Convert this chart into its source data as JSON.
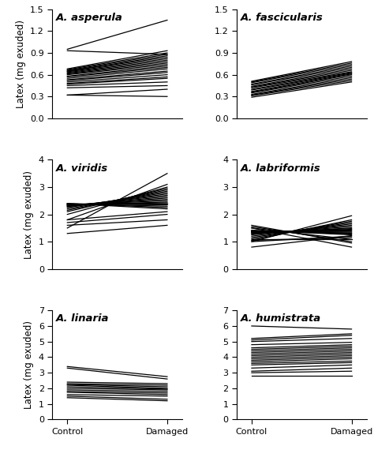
{
  "panels": [
    {
      "title": "A. asperula",
      "ylim": [
        0,
        1.5
      ],
      "yticks": [
        0,
        0.3,
        0.6,
        0.9,
        1.2,
        1.5
      ],
      "lines": [
        [
          0.95,
          1.35
        ],
        [
          0.93,
          0.88
        ],
        [
          0.68,
          0.93
        ],
        [
          0.67,
          0.9
        ],
        [
          0.66,
          0.88
        ],
        [
          0.65,
          0.86
        ],
        [
          0.65,
          0.84
        ],
        [
          0.64,
          0.82
        ],
        [
          0.63,
          0.8
        ],
        [
          0.62,
          0.78
        ],
        [
          0.61,
          0.76
        ],
        [
          0.6,
          0.74
        ],
        [
          0.58,
          0.72
        ],
        [
          0.57,
          0.7
        ],
        [
          0.55,
          0.68
        ],
        [
          0.53,
          0.65
        ],
        [
          0.52,
          0.63
        ],
        [
          0.5,
          0.6
        ],
        [
          0.48,
          0.57
        ],
        [
          0.47,
          0.55
        ],
        [
          0.45,
          0.5
        ],
        [
          0.42,
          0.45
        ],
        [
          0.32,
          0.4
        ],
        [
          0.32,
          0.3
        ]
      ]
    },
    {
      "title": "A. fascicularis",
      "ylim": [
        0,
        1.5
      ],
      "yticks": [
        0,
        0.3,
        0.6,
        0.9,
        1.2,
        1.5
      ],
      "lines": [
        [
          0.51,
          0.78
        ],
        [
          0.5,
          0.76
        ],
        [
          0.49,
          0.74
        ],
        [
          0.47,
          0.72
        ],
        [
          0.46,
          0.7
        ],
        [
          0.44,
          0.68
        ],
        [
          0.43,
          0.66
        ],
        [
          0.42,
          0.64
        ],
        [
          0.4,
          0.63
        ],
        [
          0.39,
          0.62
        ],
        [
          0.37,
          0.61
        ],
        [
          0.36,
          0.6
        ],
        [
          0.35,
          0.58
        ],
        [
          0.33,
          0.56
        ],
        [
          0.32,
          0.54
        ],
        [
          0.31,
          0.52
        ],
        [
          0.29,
          0.5
        ]
      ]
    },
    {
      "title": "A. viridis",
      "ylim": [
        0,
        4
      ],
      "yticks": [
        0,
        1,
        2,
        3,
        4
      ],
      "lines": [
        [
          1.5,
          3.5
        ],
        [
          1.8,
          3.1
        ],
        [
          2.0,
          3.0
        ],
        [
          2.1,
          2.95
        ],
        [
          2.15,
          2.9
        ],
        [
          2.2,
          2.85
        ],
        [
          2.25,
          2.8
        ],
        [
          2.27,
          2.75
        ],
        [
          2.3,
          2.7
        ],
        [
          2.3,
          2.65
        ],
        [
          2.32,
          2.6
        ],
        [
          2.33,
          2.55
        ],
        [
          2.35,
          2.5
        ],
        [
          2.35,
          2.45
        ],
        [
          2.37,
          2.42
        ],
        [
          2.38,
          2.38
        ],
        [
          2.38,
          2.35
        ],
        [
          2.38,
          2.3
        ],
        [
          2.4,
          2.25
        ],
        [
          2.4,
          2.2
        ],
        [
          1.8,
          2.1
        ],
        [
          1.7,
          2.0
        ],
        [
          1.6,
          1.8
        ],
        [
          1.3,
          1.6
        ]
      ]
    },
    {
      "title": "A. labriformis",
      "ylim": [
        0,
        4
      ],
      "yticks": [
        0,
        1,
        2,
        3,
        4
      ],
      "lines": [
        [
          1.0,
          1.95
        ],
        [
          1.05,
          1.8
        ],
        [
          1.1,
          1.75
        ],
        [
          1.15,
          1.7
        ],
        [
          1.2,
          1.65
        ],
        [
          1.25,
          1.6
        ],
        [
          1.28,
          1.55
        ],
        [
          1.3,
          1.5
        ],
        [
          1.32,
          1.48
        ],
        [
          1.33,
          1.45
        ],
        [
          1.35,
          1.43
        ],
        [
          1.35,
          1.4
        ],
        [
          1.37,
          1.38
        ],
        [
          1.38,
          1.35
        ],
        [
          1.38,
          1.32
        ],
        [
          1.4,
          1.3
        ],
        [
          1.4,
          1.28
        ],
        [
          1.42,
          1.25
        ],
        [
          0.8,
          1.22
        ],
        [
          1.0,
          1.2
        ],
        [
          1.05,
          1.15
        ],
        [
          1.1,
          1.1
        ],
        [
          1.5,
          1.08
        ],
        [
          1.55,
          1.0
        ],
        [
          1.6,
          0.95
        ],
        [
          1.5,
          0.8
        ]
      ]
    },
    {
      "title": "A. linaria",
      "ylim": [
        0,
        7
      ],
      "yticks": [
        0,
        1,
        2,
        3,
        4,
        5,
        6,
        7
      ],
      "lines": [
        [
          3.4,
          2.75
        ],
        [
          3.3,
          2.6
        ],
        [
          2.4,
          2.3
        ],
        [
          2.3,
          2.2
        ],
        [
          2.25,
          2.1
        ],
        [
          2.2,
          2.0
        ],
        [
          2.1,
          1.95
        ],
        [
          2.0,
          1.9
        ],
        [
          1.9,
          1.8
        ],
        [
          1.8,
          1.7
        ],
        [
          1.75,
          1.6
        ],
        [
          1.6,
          1.5
        ],
        [
          1.5,
          1.3
        ],
        [
          1.4,
          1.2
        ]
      ]
    },
    {
      "title": "A. humistrata",
      "ylim": [
        0,
        7
      ],
      "yticks": [
        0,
        1,
        2,
        3,
        4,
        5,
        6,
        7
      ],
      "lines": [
        [
          6.0,
          5.8
        ],
        [
          5.2,
          5.5
        ],
        [
          5.1,
          5.4
        ],
        [
          5.0,
          5.2
        ],
        [
          4.8,
          4.95
        ],
        [
          4.6,
          4.8
        ],
        [
          4.5,
          4.7
        ],
        [
          4.4,
          4.6
        ],
        [
          4.3,
          4.5
        ],
        [
          4.2,
          4.4
        ],
        [
          4.1,
          4.3
        ],
        [
          4.0,
          4.2
        ],
        [
          3.9,
          4.1
        ],
        [
          3.8,
          4.0
        ],
        [
          3.7,
          3.9
        ],
        [
          3.6,
          3.75
        ],
        [
          3.5,
          3.65
        ],
        [
          3.3,
          3.5
        ],
        [
          3.1,
          3.3
        ],
        [
          3.0,
          3.1
        ],
        [
          2.8,
          2.8
        ]
      ]
    }
  ],
  "xticklabels": [
    "Control",
    "Damaged"
  ],
  "ylabel": "Latex (mg exuded)",
  "linecolor": "black",
  "linewidth": 0.9,
  "title_fontsize": 9.5,
  "tick_fontsize": 8,
  "label_fontsize": 8.5
}
